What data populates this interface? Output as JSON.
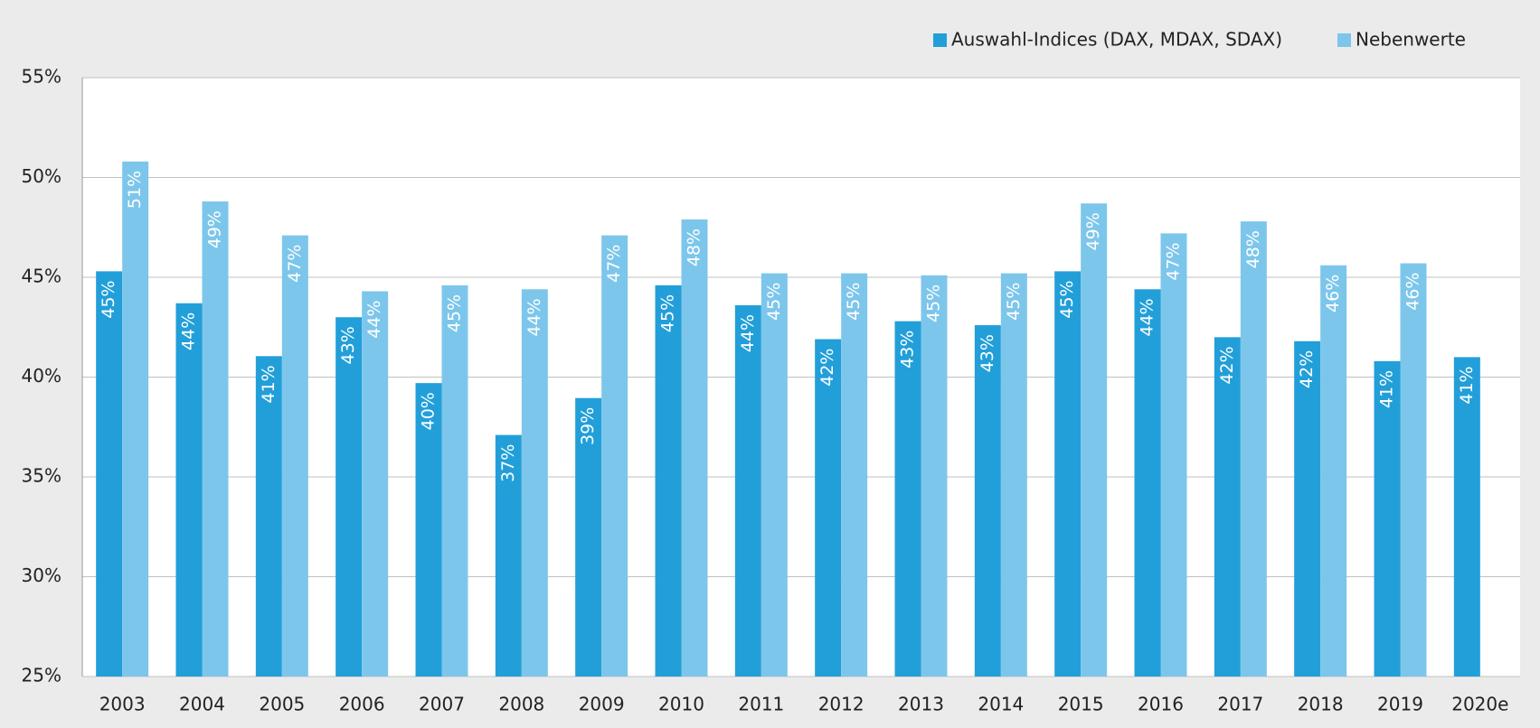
{
  "chart_data": {
    "type": "bar",
    "categories": [
      "2003",
      "2004",
      "2005",
      "2006",
      "2007",
      "2008",
      "2009",
      "2010",
      "2011",
      "2012",
      "2013",
      "2014",
      "2015",
      "2016",
      "2017",
      "2018",
      "2019",
      "2020e"
    ],
    "series": [
      {
        "name": "Auswahl-Indices (DAX, MDAX, SDAX)",
        "color": "#229fd9",
        "values": [
          45.3,
          43.7,
          41.05,
          43.0,
          39.7,
          37.1,
          38.95,
          44.6,
          43.6,
          41.9,
          42.8,
          42.6,
          45.3,
          44.4,
          42.0,
          41.8,
          40.8,
          41.0
        ],
        "value_labels": [
          "45%",
          "44%",
          "41%",
          "43%",
          "40%",
          "37%",
          "39%",
          "45%",
          "44%",
          "42%",
          "43%",
          "43%",
          "45%",
          "44%",
          "42%",
          "42%",
          "41%",
          "41%"
        ]
      },
      {
        "name": "Nebenwerte",
        "color": "#7dc6eb",
        "values": [
          50.8,
          48.8,
          47.1,
          44.3,
          44.6,
          44.4,
          47.1,
          47.9,
          45.2,
          45.2,
          45.1,
          45.2,
          48.7,
          47.2,
          47.8,
          45.6,
          45.7,
          null
        ],
        "value_labels": [
          "51%",
          "49%",
          "47%",
          "44%",
          "45%",
          "44%",
          "47%",
          "48%",
          "45%",
          "45%",
          "45%",
          "45%",
          "49%",
          "47%",
          "48%",
          "46%",
          "46%",
          null
        ]
      }
    ],
    "ylim": [
      25,
      55
    ],
    "yticks": [
      {
        "value": 25,
        "label": "25%"
      },
      {
        "value": 30,
        "label": "30%"
      },
      {
        "value": 35,
        "label": "35%"
      },
      {
        "value": 40,
        "label": "40%"
      },
      {
        "value": 45,
        "label": "45%"
      },
      {
        "value": 50,
        "label": "50%"
      },
      {
        "value": 55,
        "label": "55%"
      }
    ],
    "grid": true,
    "legend": "top-right"
  }
}
